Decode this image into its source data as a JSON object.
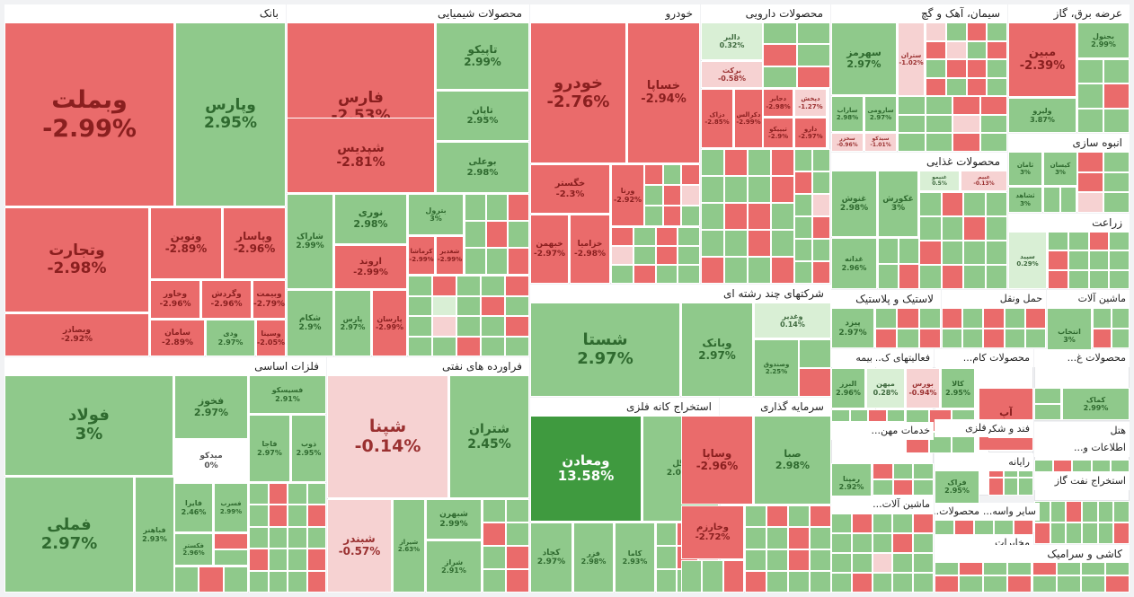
{
  "chart_data": {
    "type": "treemap",
    "value_unit": "%",
    "colors": {
      "strong_up": "#3f9a3f",
      "up": "#8fc98b",
      "light_up": "#d9efd5",
      "flat": "#ffffff",
      "light_down": "#f6d2d2",
      "down": "#ea6b6b",
      "strong_down": "#e25b5b"
    },
    "sectors": [
      {
        "name": "بانک",
        "tiles": [
          {
            "symbol": "وبملت",
            "change": "-2.99%",
            "value": -2.99
          },
          {
            "symbol": "وپارس",
            "change": "2.95%",
            "value": 2.95
          },
          {
            "symbol": "وتجارت",
            "change": "-2.98%",
            "value": -2.98
          },
          {
            "symbol": "ونوین",
            "change": "-2.89%",
            "value": -2.89
          },
          {
            "symbol": "وپاسار",
            "change": "-2.96%",
            "value": -2.96
          },
          {
            "symbol": "وبصادر",
            "change": "-2.92%",
            "value": -2.92
          },
          {
            "symbol": "وخاور",
            "change": "-2.96%",
            "value": -2.96
          },
          {
            "symbol": "وگردش",
            "change": "-2.96%",
            "value": -2.96
          },
          {
            "symbol": "وبیمت",
            "change": "-2.79%",
            "value": -2.79
          },
          {
            "symbol": "سامان",
            "change": "-2.89%",
            "value": -2.89
          },
          {
            "symbol": "ودی",
            "change": "2.97%",
            "value": 2.97
          },
          {
            "symbol": "وسینا",
            "change": "-2.05%",
            "value": -2.05
          }
        ]
      },
      {
        "name": "محصولات شیمیایی",
        "tiles": [
          {
            "symbol": "فارس",
            "change": "-2.53%",
            "value": -2.53
          },
          {
            "symbol": "تاپیکو",
            "change": "2.99%",
            "value": 2.99
          },
          {
            "symbol": "شپدیس",
            "change": "-2.81%",
            "value": -2.81
          },
          {
            "symbol": "تاپان",
            "change": "2.95%",
            "value": 2.95
          },
          {
            "symbol": "بوعلی",
            "change": "2.98%",
            "value": 2.98
          },
          {
            "symbol": "نوری",
            "change": "2.98%",
            "value": 2.98
          },
          {
            "symbol": "شاراک",
            "change": "2.99%",
            "value": 2.99
          },
          {
            "symbol": "اروند",
            "change": "-2.99%",
            "value": -2.99
          },
          {
            "symbol": "شکام",
            "change": "2.9%",
            "value": 2.9
          },
          {
            "symbol": "پارس",
            "change": "2.97%",
            "value": 2.97
          },
          {
            "symbol": "پارسان",
            "change": "-2.99%",
            "value": -2.99
          },
          {
            "symbol": "بترول",
            "change": "3%",
            "value": 3
          },
          {
            "symbol": "کرماشا",
            "change": "-2.99%",
            "value": -2.99
          },
          {
            "symbol": "شغدیر",
            "change": "-2.99%",
            "value": -2.99
          }
        ]
      },
      {
        "name": "خودرو",
        "tiles": [
          {
            "symbol": "خودرو",
            "change": "-2.76%",
            "value": -2.76
          },
          {
            "symbol": "خساپا",
            "change": "-2.94%",
            "value": -2.94
          },
          {
            "symbol": "خگستر",
            "change": "-2.3%",
            "value": -2.3
          },
          {
            "symbol": "خبهمن",
            "change": "-2.97%",
            "value": -2.97
          },
          {
            "symbol": "خزامیا",
            "change": "-2.98%",
            "value": -2.98
          },
          {
            "symbol": "ورنا",
            "change": "-2.92%",
            "value": -2.92
          }
        ]
      },
      {
        "name": "محصولات دارویی",
        "tiles": [
          {
            "symbol": "دالبر",
            "change": "0.32%",
            "value": 0.32
          },
          {
            "symbol": "برکت",
            "change": "-0.58%",
            "value": -0.58
          },
          {
            "symbol": "دجابر",
            "change": "-2.98%",
            "value": -2.98
          },
          {
            "symbol": "دپخش",
            "change": "-1.27%",
            "value": -1.27
          },
          {
            "symbol": "دزاک",
            "change": "-2.85%",
            "value": -2.85
          },
          {
            "symbol": "دکرالس",
            "change": "-2.99%",
            "value": -2.99
          },
          {
            "symbol": "تیپیکو",
            "change": "-2.9%",
            "value": -2.9
          },
          {
            "symbol": "دارو",
            "change": "-2.97%",
            "value": -2.97
          }
        ]
      },
      {
        "name": "سیمان، آهک و گچ",
        "tiles": [
          {
            "symbol": "سهرمز",
            "change": "2.97%",
            "value": 2.97
          },
          {
            "symbol": "ساراب",
            "change": "2.98%",
            "value": 2.98
          },
          {
            "symbol": "سارومی",
            "change": "2.97%",
            "value": 2.97
          },
          {
            "symbol": "سخزر",
            "change": "-0.96%",
            "value": -0.96
          },
          {
            "symbol": "سیدکو",
            "change": "-1.01%",
            "value": -1.01
          },
          {
            "symbol": "ستران",
            "change": "-1.02%",
            "value": -1.02
          }
        ]
      },
      {
        "name": "عرضه برق، گاز",
        "tiles": [
          {
            "symbol": "مبین",
            "change": "-2.39%",
            "value": -2.39
          },
          {
            "symbol": "بجنول",
            "change": "2.99%",
            "value": 2.99
          },
          {
            "symbol": "ولیرو",
            "change": "3.87%",
            "value": 3.87
          }
        ]
      },
      {
        "name": "انبوه سازی",
        "tiles": [
          {
            "symbol": "ثامان",
            "change": "3%",
            "value": 3
          },
          {
            "symbol": "کیسان",
            "change": "3%",
            "value": 3
          },
          {
            "symbol": "ثشاهد",
            "change": "3%",
            "value": 3
          }
        ]
      },
      {
        "name": "محصولات غذایی",
        "tiles": [
          {
            "symbol": "غنوش",
            "change": "2.98%",
            "value": 2.98
          },
          {
            "symbol": "غکورش",
            "change": "3%",
            "value": 3
          },
          {
            "symbol": "غدانه",
            "change": "2.96%",
            "value": 2.96
          },
          {
            "symbol": "غنیمو",
            "change": "0.5%",
            "value": 0.5
          },
          {
            "symbol": "غبیم",
            "change": "-0.13%",
            "value": -0.13
          }
        ]
      },
      {
        "name": "زراعت",
        "tiles": [
          {
            "symbol": "سپید",
            "change": "0.29%",
            "value": 0.29
          }
        ]
      },
      {
        "name": "شرکتهای چند رشته ای",
        "tiles": [
          {
            "symbol": "شستا",
            "change": "2.97%",
            "value": 2.97
          },
          {
            "symbol": "وبانک",
            "change": "2.97%",
            "value": 2.97
          },
          {
            "symbol": "وغدیر",
            "change": "0.14%",
            "value": 0.14
          },
          {
            "symbol": "وصندوق",
            "change": "2.25%",
            "value": 2.25
          }
        ]
      },
      {
        "name": "فلزات اساسی",
        "tiles": [
          {
            "symbol": "فولاد",
            "change": "3%",
            "value": 3
          },
          {
            "symbol": "فملی",
            "change": "2.97%",
            "value": 2.97
          },
          {
            "symbol": "فخوز",
            "change": "2.97%",
            "value": 2.97
          },
          {
            "symbol": "فسیسکو",
            "change": "2.91%",
            "value": 2.91
          },
          {
            "symbol": "میدکو",
            "change": "0%",
            "value": 0
          },
          {
            "symbol": "فاجا",
            "change": "2.97%",
            "value": 2.97
          },
          {
            "symbol": "ذوب",
            "change": "2.95%",
            "value": 2.95
          },
          {
            "symbol": "فباهنر",
            "change": "2.93%",
            "value": 2.93
          },
          {
            "symbol": "فایرا",
            "change": "2.46%",
            "value": 2.46
          },
          {
            "symbol": "فسرب",
            "change": "2.99%",
            "value": 2.99
          },
          {
            "symbol": "فکستر",
            "change": "2.96%",
            "value": 2.96
          }
        ]
      },
      {
        "name": "فراورده های نفتی",
        "tiles": [
          {
            "symbol": "شپنا",
            "change": "-0.14%",
            "value": -0.14
          },
          {
            "symbol": "شتران",
            "change": "2.45%",
            "value": 2.45
          },
          {
            "symbol": "شبندر",
            "change": "-0.57%",
            "value": -0.57
          },
          {
            "symbol": "شبهرن",
            "change": "2.99%",
            "value": 2.99
          },
          {
            "symbol": "شیراز",
            "change": "2.63%",
            "value": 2.63
          },
          {
            "symbol": "شراز",
            "change": "2.91%",
            "value": 2.91
          }
        ]
      },
      {
        "name": "استخراج کانه فلزی",
        "tiles": [
          {
            "symbol": "ومعادن",
            "change": "13.58%",
            "value": 13.58
          },
          {
            "symbol": "کگل",
            "change": "2.08%",
            "value": 2.08
          },
          {
            "symbol": "کچاد",
            "change": "2.97%",
            "value": 2.97
          },
          {
            "symbol": "فزر",
            "change": "2.98%",
            "value": 2.98
          },
          {
            "symbol": "کاما",
            "change": "2.93%",
            "value": 2.93
          }
        ]
      },
      {
        "name": "سرمایه گذاری",
        "tiles": [
          {
            "symbol": "وساپا",
            "change": "-2.96%",
            "value": -2.96
          },
          {
            "symbol": "صبا",
            "change": "2.98%",
            "value": 2.98
          },
          {
            "symbol": "وخارزم",
            "change": "-2.72%",
            "value": -2.72
          }
        ]
      },
      {
        "name": "لاستیک و پلاستیک",
        "tiles": [
          {
            "symbol": "پیزد",
            "change": "2.97%",
            "value": 2.97
          }
        ]
      },
      {
        "name": "حمل ونقل",
        "tiles": []
      },
      {
        "name": "ماشین آلات",
        "tiles": [
          {
            "symbol": "انتخاب",
            "change": "3%",
            "value": 3
          }
        ]
      },
      {
        "name": "فعالیتهای ک...",
        "tiles": [
          {
            "symbol": "بورس",
            "change": "-0.94%",
            "value": -0.94
          },
          {
            "symbol": "کالا",
            "change": "2.95%",
            "value": 2.95
          }
        ]
      },
      {
        "name": "بیمه",
        "tiles": [
          {
            "symbol": "البرز",
            "change": "2.96%",
            "value": 2.96
          },
          {
            "symbol": "میهن",
            "change": "0.28%",
            "value": 0.28
          }
        ]
      },
      {
        "name": "محصولات کام...",
        "tiles": [
          {
            "symbol": "آپ",
            "change": "-2.99%",
            "value": -2.99
          }
        ]
      },
      {
        "name": "محصولات غ...",
        "tiles": [
          {
            "symbol": "کماک",
            "change": "2.99%",
            "value": 2.99
          }
        ]
      },
      {
        "name": "محصولات فلزی",
        "tiles": [
          {
            "symbol": "فزاک",
            "change": "2.95%",
            "value": 2.95
          }
        ]
      },
      {
        "name": "خدمات مهن...",
        "tiles": [
          {
            "symbol": "رمپنا",
            "change": "2.92%",
            "value": 2.92
          }
        ]
      },
      {
        "name": "رایانه",
        "tiles": []
      },
      {
        "name": "ماشین آلات...",
        "tiles": []
      },
      {
        "name": "هتل",
        "tiles": []
      },
      {
        "name": "استخراج نفت گاز",
        "tiles": []
      },
      {
        "name": "مخابرات",
        "tiles": []
      },
      {
        "name": "کاشی و سرامیک",
        "tiles": []
      },
      {
        "name": "فند و شکر",
        "tiles": []
      },
      {
        "name": "اطلاعات و...",
        "tiles": []
      },
      {
        "name": "سایر واسه...",
        "tiles": []
      },
      {
        "name": "محصولات...",
        "tiles": []
      }
    ]
  }
}
